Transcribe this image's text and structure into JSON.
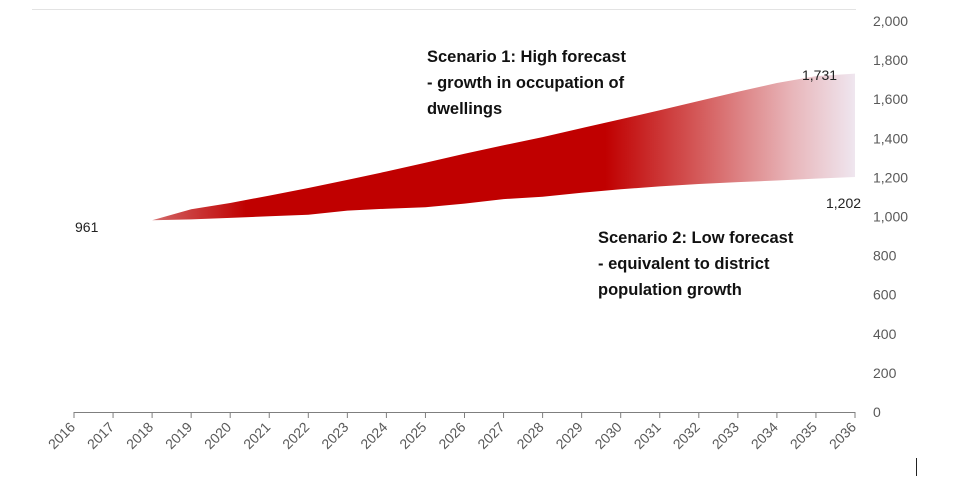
{
  "chart_data": {
    "type": "area",
    "x": [
      "2016",
      "2017",
      "2018",
      "2019",
      "2020",
      "2021",
      "2022",
      "2023",
      "2024",
      "2025",
      "2026",
      "2027",
      "2028",
      "2029",
      "2030",
      "2031",
      "2032",
      "2033",
      "2034",
      "2035",
      "2036"
    ],
    "series": [
      {
        "name": "",
        "values": [
          961,
          961,
          981,
          1037,
          1069,
          1107,
          1146,
          1187,
          1230,
          1275,
          1321,
          1364,
          1406,
          1452,
          1497,
          1543,
          1591,
          1638,
          1683,
          1718,
          1731
        ]
      },
      {
        "name": "",
        "values": [
          961,
          961,
          981,
          985,
          993,
          1001,
          1009,
          1030,
          1040,
          1047,
          1066,
          1089,
          1101,
          1121,
          1139,
          1154,
          1166,
          1176,
          1184,
          1194,
          1202
        ]
      }
    ],
    "ylim": [
      0,
      2000
    ],
    "yticks": [
      "0",
      "200",
      "400",
      "600",
      "800",
      "1,000",
      "1,200",
      "1,400",
      "1,600",
      "1,800",
      "2,000"
    ],
    "data_labels": {
      "start": "961",
      "high_end": "1,731",
      "low_end": "1,202"
    },
    "annotations": {
      "high": [
        "Scenario 1:  High forecast",
        "- growth in occupation of",
        "dwellings"
      ],
      "low": [
        "Scenario 2:  Low forecast",
        "- equivalent to district",
        "population growth"
      ]
    },
    "y_axis_side": "right",
    "gridlines": false,
    "legend": "none",
    "colors": {
      "band": "#c00000",
      "band_fade": "#efe6ef",
      "axis": "#7f7f7f"
    }
  }
}
